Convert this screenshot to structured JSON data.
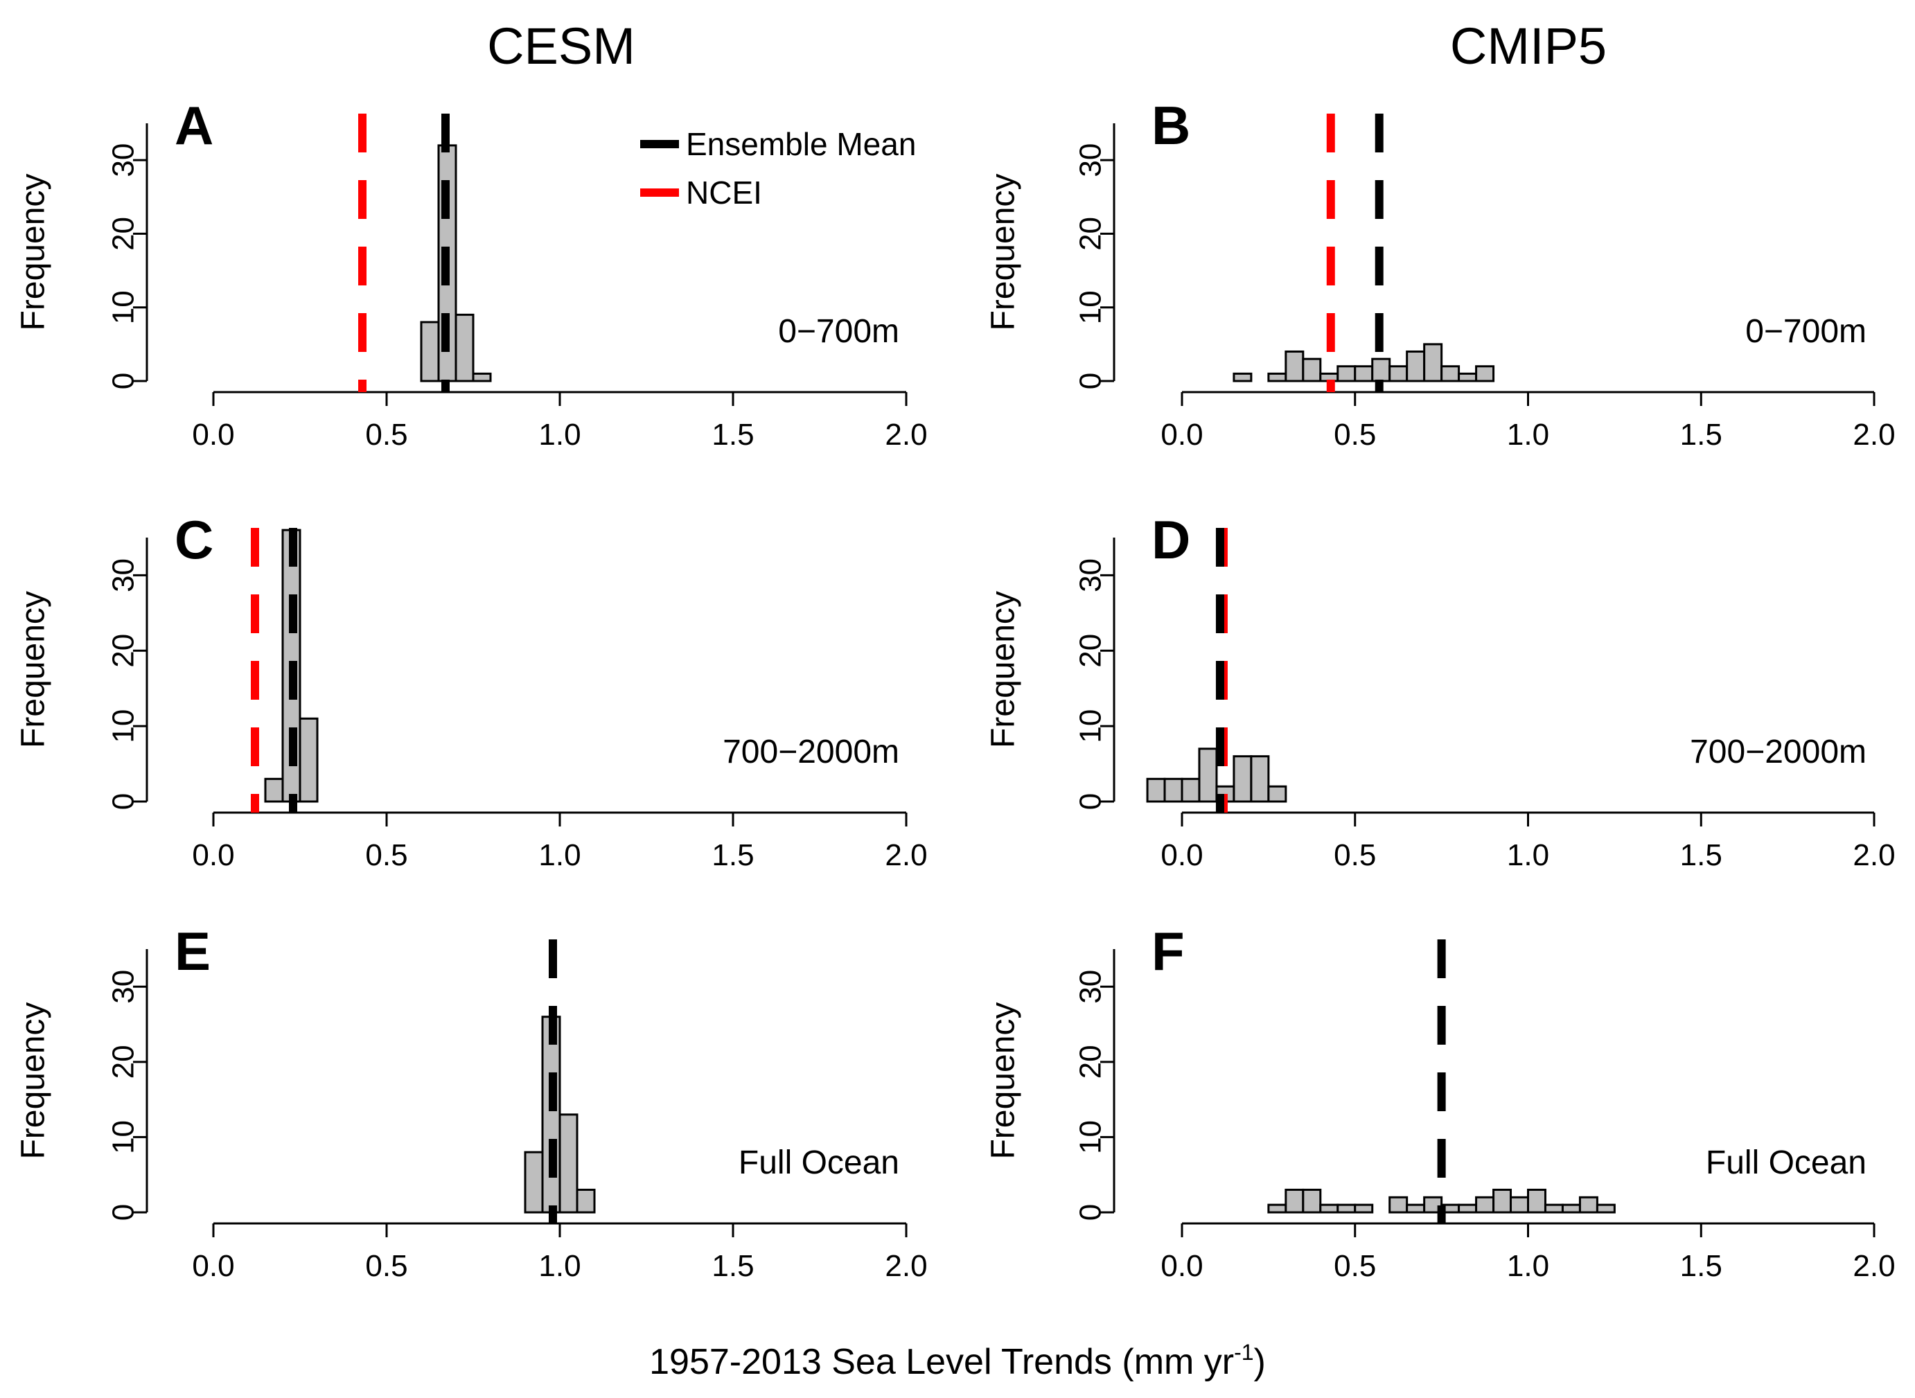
{
  "figure": {
    "column_titles": [
      "CESM",
      "CMIP5"
    ],
    "xlabel_main": "1957-2013 Sea Level Trends (mm yr",
    "xlabel_sup": "-1",
    "xlabel_close": ")",
    "ylabel": "Frequency",
    "legend": [
      {
        "label": "Ensemble Mean",
        "color": "#000000"
      },
      {
        "label": "NCEI",
        "color": "#ff0000"
      }
    ],
    "colors": {
      "bar_fill": "#bebebe",
      "bar_stroke": "#000000",
      "mean": "#000000",
      "ncei": "#ff0000"
    }
  },
  "chart_data": [
    {
      "type": "bar",
      "panel": "A",
      "model": "CESM",
      "depth_label": "0−700m",
      "xlim": [
        0.0,
        2.0
      ],
      "xticks": [
        "0.0",
        "0.5",
        "1.0",
        "1.5",
        "2.0"
      ],
      "ylim": [
        0,
        35
      ],
      "yticks": [
        "0",
        "10",
        "20",
        "30"
      ],
      "bin_width": 0.05,
      "bins": [
        [
          0.6,
          8
        ],
        [
          0.65,
          32
        ],
        [
          0.7,
          9
        ],
        [
          0.75,
          1
        ]
      ],
      "ensemble_mean": 0.67,
      "ncei": 0.43,
      "show_legend": true
    },
    {
      "type": "bar",
      "panel": "B",
      "model": "CMIP5",
      "depth_label": "0−700m",
      "xlim": [
        0.0,
        2.0
      ],
      "xticks": [
        "0.0",
        "0.5",
        "1.0",
        "1.5",
        "2.0"
      ],
      "ylim": [
        0,
        35
      ],
      "yticks": [
        "0",
        "10",
        "20",
        "30"
      ],
      "bin_width": 0.05,
      "bins": [
        [
          0.15,
          1
        ],
        [
          0.2,
          0
        ],
        [
          0.25,
          1
        ],
        [
          0.3,
          4
        ],
        [
          0.35,
          3
        ],
        [
          0.4,
          1
        ],
        [
          0.45,
          2
        ],
        [
          0.5,
          2
        ],
        [
          0.55,
          3
        ],
        [
          0.6,
          2
        ],
        [
          0.65,
          4
        ],
        [
          0.7,
          5
        ],
        [
          0.75,
          2
        ],
        [
          0.8,
          1
        ],
        [
          0.85,
          2
        ]
      ],
      "ensemble_mean": 0.57,
      "ncei": 0.43,
      "show_legend": false
    },
    {
      "type": "bar",
      "panel": "C",
      "model": "CESM",
      "depth_label": "700−2000m",
      "xlim": [
        0.0,
        2.0
      ],
      "xticks": [
        "0.0",
        "0.5",
        "1.0",
        "1.5",
        "2.0"
      ],
      "ylim": [
        0,
        35
      ],
      "yticks": [
        "0",
        "10",
        "20",
        "30"
      ],
      "bin_width": 0.05,
      "bins": [
        [
          0.15,
          3
        ],
        [
          0.2,
          36
        ],
        [
          0.25,
          11
        ]
      ],
      "ensemble_mean": 0.23,
      "ncei": 0.12,
      "show_legend": false
    },
    {
      "type": "bar",
      "panel": "D",
      "model": "CMIP5",
      "depth_label": "700−2000m",
      "xlim": [
        0.0,
        2.0
      ],
      "xticks": [
        "0.0",
        "0.5",
        "1.0",
        "1.5",
        "2.0"
      ],
      "ylim": [
        0,
        35
      ],
      "yticks": [
        "0",
        "10",
        "20",
        "30"
      ],
      "bin_width": 0.05,
      "bins": [
        [
          -0.1,
          3
        ],
        [
          -0.05,
          3
        ],
        [
          0.0,
          3
        ],
        [
          0.05,
          7
        ],
        [
          0.1,
          2
        ],
        [
          0.15,
          6
        ],
        [
          0.2,
          6
        ],
        [
          0.25,
          2
        ]
      ],
      "ensemble_mean": 0.11,
      "ncei": 0.12,
      "show_legend": false
    },
    {
      "type": "bar",
      "panel": "E",
      "model": "CESM",
      "depth_label": "Full Ocean",
      "xlim": [
        0.0,
        2.0
      ],
      "xticks": [
        "0.0",
        "0.5",
        "1.0",
        "1.5",
        "2.0"
      ],
      "ylim": [
        0,
        35
      ],
      "yticks": [
        "0",
        "10",
        "20",
        "30"
      ],
      "bin_width": 0.05,
      "bins": [
        [
          0.9,
          8
        ],
        [
          0.95,
          26
        ],
        [
          1.0,
          13
        ],
        [
          1.05,
          3
        ]
      ],
      "ensemble_mean": 0.98,
      "ncei": null,
      "show_legend": false
    },
    {
      "type": "bar",
      "panel": "F",
      "model": "CMIP5",
      "depth_label": "Full Ocean",
      "xlim": [
        0.0,
        2.0
      ],
      "xticks": [
        "0.0",
        "0.5",
        "1.0",
        "1.5",
        "2.0"
      ],
      "ylim": [
        0,
        35
      ],
      "yticks": [
        "0",
        "10",
        "20",
        "30"
      ],
      "bin_width": 0.05,
      "bins": [
        [
          0.25,
          1
        ],
        [
          0.3,
          3
        ],
        [
          0.35,
          3
        ],
        [
          0.4,
          1
        ],
        [
          0.45,
          1
        ],
        [
          0.5,
          1
        ],
        [
          0.55,
          0
        ],
        [
          0.6,
          2
        ],
        [
          0.65,
          1
        ],
        [
          0.7,
          2
        ],
        [
          0.75,
          1
        ],
        [
          0.8,
          1
        ],
        [
          0.85,
          2
        ],
        [
          0.9,
          3
        ],
        [
          0.95,
          2
        ],
        [
          1.0,
          3
        ],
        [
          1.05,
          1
        ],
        [
          1.1,
          1
        ],
        [
          1.15,
          2
        ],
        [
          1.2,
          1
        ]
      ],
      "ensemble_mean": 0.75,
      "ncei": null,
      "show_legend": false
    }
  ]
}
